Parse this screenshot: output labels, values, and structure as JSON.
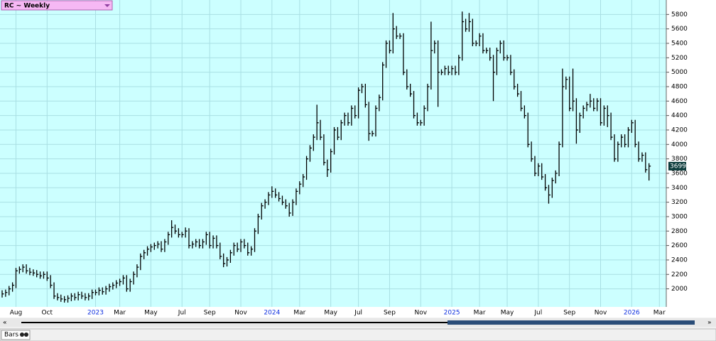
{
  "chart_data": {
    "type": "ohlc",
    "title": "RC ~ Weekly",
    "footer": "Bars",
    "color": "#000000",
    "background": "#ccffff",
    "grid": true,
    "ylim": [
      1750,
      6000
    ],
    "yticks": [
      2000,
      2200,
      2400,
      2600,
      2800,
      3000,
      3200,
      3400,
      3600,
      3800,
      4000,
      4200,
      4400,
      4600,
      4800,
      5000,
      5200,
      5400,
      5600,
      5800
    ],
    "categories": [
      null,
      null,
      null,
      null,
      "Aug",
      null,
      null,
      null,
      null,
      null,
      null,
      null,
      null,
      "Oct",
      null,
      null,
      null,
      null,
      null,
      null,
      null,
      null,
      null,
      null,
      null,
      null,
      null,
      "2023",
      null,
      null,
      null,
      null,
      null,
      null,
      "Mar",
      null,
      null,
      null,
      null,
      null,
      null,
      null,
      null,
      "May",
      null,
      null,
      null,
      null,
      null,
      null,
      null,
      null,
      "Jul",
      null,
      null,
      null,
      null,
      null,
      null,
      null,
      "Sep",
      null,
      null,
      null,
      null,
      null,
      null,
      null,
      null,
      "Nov",
      null,
      null,
      null,
      null,
      null,
      null,
      null,
      null,
      "2024",
      null,
      null,
      null,
      null,
      null,
      null,
      null,
      "Mar",
      null,
      null,
      null,
      null,
      null,
      null,
      null,
      null,
      "May",
      null,
      null,
      null,
      null,
      null,
      null,
      null,
      "Jul",
      null,
      null,
      null,
      null,
      null,
      null,
      null,
      null,
      "Sep",
      null,
      null,
      null,
      null,
      null,
      null,
      null,
      null,
      "Nov",
      null,
      null,
      null,
      null,
      null,
      null,
      null,
      null,
      "2025",
      null,
      null,
      null,
      null,
      null,
      null,
      null,
      "Mar",
      null,
      null,
      null,
      null,
      null,
      null,
      null,
      "May",
      null,
      null,
      null,
      null,
      null,
      null,
      null,
      null,
      "Jul",
      null,
      null,
      null,
      null,
      null,
      null,
      null,
      null,
      "Sep",
      null,
      null,
      null,
      null,
      null,
      null,
      null,
      null,
      "Nov",
      null,
      null,
      null,
      null,
      null,
      null,
      null,
      null,
      "2026",
      null,
      null,
      null,
      null,
      null,
      null,
      null,
      "Mar"
    ],
    "high": [
      1980,
      1990,
      2040,
      2090,
      2290,
      2310,
      2340,
      2340,
      2290,
      2270,
      2260,
      2240,
      2240,
      2240,
      2190,
      2090,
      1940,
      1920,
      1900,
      1910,
      1940,
      1940,
      1960,
      1960,
      1940,
      1940,
      1990,
      1990,
      2020,
      2020,
      2040,
      2070,
      2090,
      2120,
      2140,
      2190,
      2190,
      2140,
      2240,
      2340,
      2490,
      2540,
      2590,
      2620,
      2640,
      2660,
      2660,
      2690,
      2790,
      2950,
      2890,
      2840,
      2790,
      2850,
      2840,
      2660,
      2690,
      2690,
      2690,
      2790,
      2790,
      2740,
      2740,
      2640,
      2490,
      2440,
      2540,
      2640,
      2640,
      2690,
      2690,
      2640,
      2590,
      2840,
      3040,
      3190,
      3240,
      3340,
      3420,
      3390,
      3340,
      3290,
      3240,
      3190,
      3240,
      3390,
      3490,
      3590,
      3840,
      3990,
      4140,
      4550,
      4340,
      4140,
      3790,
      3940,
      4240,
      4240,
      4340,
      4440,
      4440,
      4540,
      4540,
      4790,
      4840,
      4840,
      4590,
      4190,
      4540,
      4690,
      5140,
      5440,
      5440,
      5820,
      5640,
      5540,
      5540,
      5040,
      4840,
      4740,
      4440,
      4340,
      4540,
      4840,
      5700,
      5440,
      5440,
      5040,
      5090,
      5090,
      5090,
      5090,
      5240,
      5840,
      5740,
      5820,
      5740,
      5440,
      5540,
      5540,
      5340,
      5340,
      5240,
      5340,
      5440,
      5440,
      5240,
      5240,
      5040,
      4840,
      4740,
      4540,
      4440,
      4040,
      3840,
      3740,
      3740,
      3590,
      3440,
      3540,
      3640,
      4040,
      5050,
      4940,
      4940,
      5050,
      4640,
      4440,
      4540,
      4590,
      4700,
      4640,
      4640,
      4640,
      4540,
      4540,
      4440,
      4140,
      4040,
      4140,
      4140,
      4240,
      4340,
      4340,
      4040,
      3890,
      3890,
      3740,
      null,
      null,
      null
    ],
    "low": [
      1880,
      1890,
      1910,
      1960,
      2010,
      2210,
      2230,
      2210,
      2190,
      2180,
      2160,
      2140,
      2140,
      2110,
      2010,
      1860,
      1840,
      1820,
      1810,
      1810,
      1830,
      1840,
      1840,
      1860,
      1840,
      1840,
      1860,
      1910,
      1910,
      1920,
      1920,
      1960,
      1990,
      2010,
      2040,
      2060,
      1960,
      1960,
      2060,
      2160,
      2260,
      2410,
      2460,
      2510,
      2540,
      2560,
      2510,
      2510,
      2610,
      2710,
      2760,
      2710,
      2710,
      2710,
      2560,
      2560,
      2580,
      2560,
      2560,
      2610,
      2560,
      2560,
      2560,
      2410,
      2300,
      2310,
      2360,
      2460,
      2510,
      2510,
      2560,
      2460,
      2460,
      2510,
      2760,
      2960,
      3110,
      3160,
      3260,
      3260,
      3210,
      3160,
      3110,
      3000,
      3010,
      3160,
      3310,
      3410,
      3510,
      3760,
      3910,
      4060,
      4060,
      3710,
      3550,
      3610,
      3860,
      4060,
      4060,
      4260,
      4260,
      4260,
      4360,
      4360,
      4710,
      4510,
      4050,
      4110,
      4110,
      4460,
      4610,
      5060,
      5260,
      5260,
      5460,
      5460,
      4960,
      4760,
      4660,
      4360,
      4260,
      4260,
      4260,
      4460,
      4760,
      5260,
      4520,
      4960,
      4960,
      4960,
      4960,
      4960,
      4960,
      5160,
      5560,
      5560,
      5360,
      5360,
      5360,
      5260,
      5260,
      5160,
      4600,
      4960,
      5260,
      5160,
      5160,
      4960,
      4760,
      4660,
      4460,
      4360,
      3960,
      3760,
      3560,
      3560,
      3510,
      3360,
      3180,
      3260,
      3460,
      3560,
      3960,
      4760,
      4460,
      4460,
      4010,
      4160,
      4360,
      4460,
      4510,
      4460,
      4460,
      4260,
      4260,
      4240,
      4060,
      3760,
      3760,
      3960,
      3960,
      3960,
      4160,
      3960,
      3760,
      3760,
      3610,
      3500,
      null,
      null,
      null
    ],
    "close": [
      1930,
      1950,
      2000,
      2050,
      2250,
      2270,
      2300,
      2250,
      2230,
      2220,
      2200,
      2180,
      2200,
      2150,
      2050,
      1900,
      1880,
      1860,
      1850,
      1870,
      1900,
      1880,
      1920,
      1900,
      1880,
      1900,
      1950,
      1950,
      1980,
      1960,
      2000,
      2030,
      2050,
      2080,
      2100,
      2150,
      2000,
      2100,
      2200,
      2300,
      2450,
      2500,
      2550,
      2580,
      2600,
      2620,
      2550,
      2650,
      2750,
      2850,
      2800,
      2750,
      2750,
      2800,
      2600,
      2620,
      2650,
      2600,
      2650,
      2750,
      2600,
      2700,
      2600,
      2450,
      2350,
      2400,
      2500,
      2600,
      2550,
      2650,
      2600,
      2500,
      2550,
      2800,
      3000,
      3150,
      3200,
      3300,
      3350,
      3300,
      3250,
      3200,
      3150,
      3050,
      3200,
      3350,
      3450,
      3550,
      3800,
      3950,
      4100,
      4300,
      4100,
      3750,
      3650,
      3900,
      4200,
      4100,
      4300,
      4400,
      4300,
      4500,
      4400,
      4750,
      4800,
      4550,
      4150,
      4150,
      4500,
      4650,
      5100,
      5400,
      5300,
      5600,
      5500,
      5500,
      5000,
      4800,
      4700,
      4400,
      4300,
      4300,
      4500,
      4800,
      5300,
      5400,
      5000,
      5000,
      5050,
      5000,
      5050,
      5000,
      5200,
      5700,
      5600,
      5700,
      5400,
      5400,
      5500,
      5300,
      5300,
      5200,
      5000,
      5300,
      5400,
      5200,
      5200,
      5000,
      4800,
      4700,
      4500,
      4400,
      4000,
      3800,
      3600,
      3700,
      3550,
      3400,
      3300,
      3500,
      3600,
      4000,
      4800,
      4900,
      4500,
      4600,
      4200,
      4400,
      4500,
      4550,
      4600,
      4500,
      4600,
      4300,
      4500,
      4400,
      4100,
      3800,
      4000,
      4100,
      4000,
      4200,
      4300,
      4000,
      3800,
      3850,
      3650,
      3699,
      null,
      null,
      null
    ]
  }
}
